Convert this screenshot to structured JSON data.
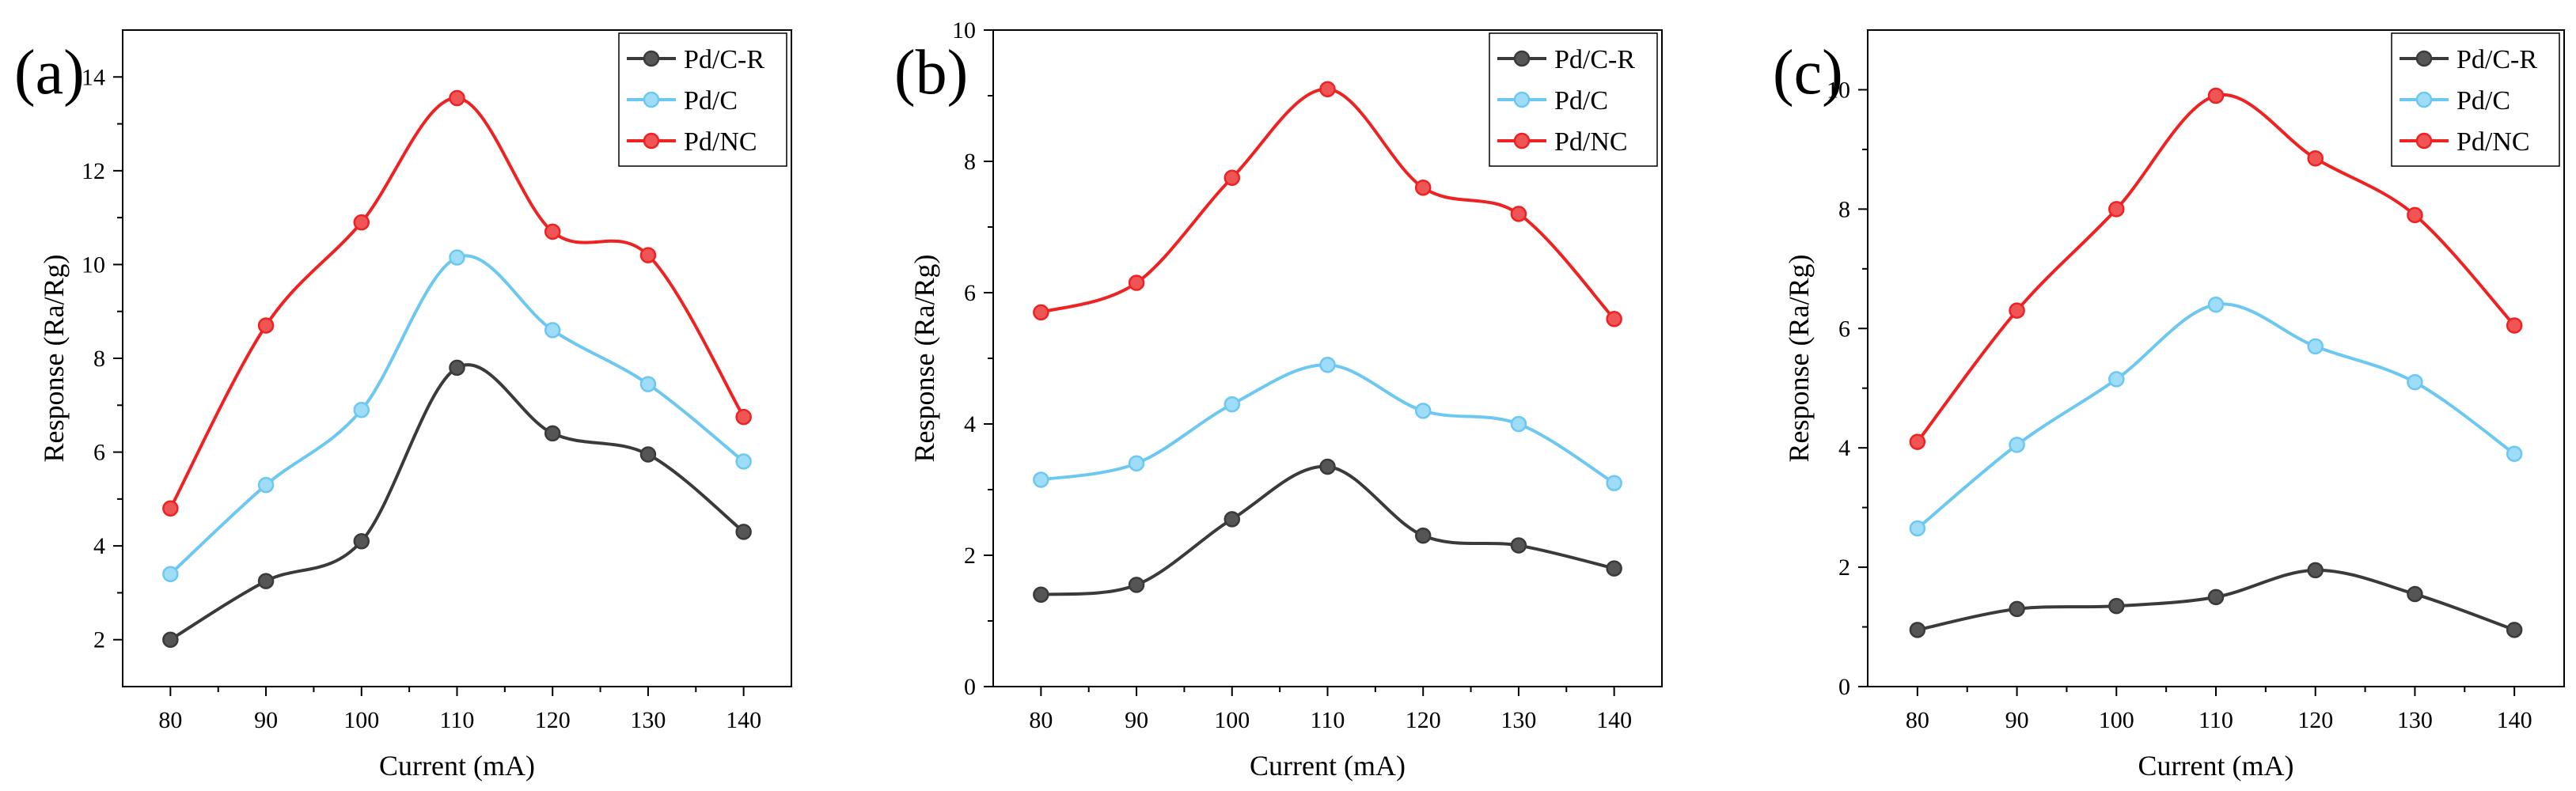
{
  "figure": {
    "x_axis_label": "Current (mA)",
    "y_axis_label": "Response (Ra/Rg)"
  },
  "chart_data": [
    {
      "type": "line",
      "panel": "(a)",
      "x": [
        80,
        90,
        100,
        110,
        120,
        130,
        140
      ],
      "xlabel": "Current (mA)",
      "ylabel": "Response (Ra/Rg)",
      "xlim": [
        75,
        145
      ],
      "ylim": [
        1,
        15
      ],
      "xticks": [
        80,
        90,
        100,
        110,
        120,
        130,
        140
      ],
      "yticks": [
        2,
        4,
        6,
        8,
        10,
        12,
        14
      ],
      "legend_position": "top-right",
      "series": [
        {
          "name": "Pd/C-R",
          "color": "#3a3a3a",
          "values": [
            2.0,
            3.25,
            4.1,
            7.8,
            6.4,
            5.95,
            4.3
          ]
        },
        {
          "name": "Pd/C",
          "color": "#6cc8f0",
          "values": [
            3.4,
            5.3,
            6.9,
            10.15,
            8.6,
            7.45,
            5.8
          ]
        },
        {
          "name": "Pd/NC",
          "color": "#ee2222",
          "values": [
            4.8,
            8.7,
            10.9,
            13.55,
            10.7,
            10.2,
            6.75
          ]
        }
      ]
    },
    {
      "type": "line",
      "panel": "(b)",
      "x": [
        80,
        90,
        100,
        110,
        120,
        130,
        140
      ],
      "xlabel": "Current (mA)",
      "ylabel": "Response (Ra/Rg)",
      "xlim": [
        75,
        145
      ],
      "ylim": [
        0,
        10
      ],
      "xticks": [
        80,
        90,
        100,
        110,
        120,
        130,
        140
      ],
      "yticks": [
        0,
        2,
        4,
        6,
        8,
        10
      ],
      "legend_position": "top-right",
      "series": [
        {
          "name": "Pd/C-R",
          "color": "#3a3a3a",
          "values": [
            1.4,
            1.55,
            2.55,
            3.35,
            2.3,
            2.15,
            1.8
          ]
        },
        {
          "name": "Pd/C",
          "color": "#6cc8f0",
          "values": [
            3.15,
            3.4,
            4.3,
            4.9,
            4.2,
            4.0,
            3.1
          ]
        },
        {
          "name": "Pd/NC",
          "color": "#ee2222",
          "values": [
            5.7,
            6.15,
            7.75,
            9.1,
            7.6,
            7.2,
            5.6
          ]
        }
      ]
    },
    {
      "type": "line",
      "panel": "(c)",
      "x": [
        80,
        90,
        100,
        110,
        120,
        130,
        140
      ],
      "xlabel": "Current (mA)",
      "ylabel": "Response (Ra/Rg)",
      "xlim": [
        75,
        145
      ],
      "ylim": [
        0,
        11
      ],
      "xticks": [
        80,
        90,
        100,
        110,
        120,
        130,
        140
      ],
      "yticks": [
        0,
        2,
        4,
        6,
        8,
        10
      ],
      "legend_position": "top-right",
      "series": [
        {
          "name": "Pd/C-R",
          "color": "#3a3a3a",
          "values": [
            0.95,
            1.3,
            1.35,
            1.5,
            1.95,
            1.55,
            0.95
          ]
        },
        {
          "name": "Pd/C",
          "color": "#6cc8f0",
          "values": [
            2.65,
            4.05,
            5.15,
            6.4,
            5.7,
            5.1,
            3.9
          ]
        },
        {
          "name": "Pd/NC",
          "color": "#ee2222",
          "values": [
            4.1,
            6.3,
            8.0,
            9.9,
            8.85,
            7.9,
            6.05
          ]
        }
      ]
    }
  ]
}
